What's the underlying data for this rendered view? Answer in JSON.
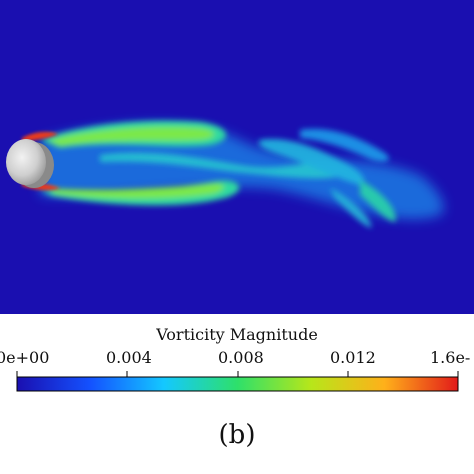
{
  "colorbar": {
    "title": "Vorticity Magnitude",
    "ticks": [
      {
        "label": "0e+00",
        "value": 0
      },
      {
        "label": "0.004",
        "value": 0.004
      },
      {
        "label": "0.008",
        "value": 0.008
      },
      {
        "label": "0.012",
        "value": 0.012
      },
      {
        "label": "1.6e-",
        "value": 0.016
      }
    ],
    "colors": [
      "#1a0fb0",
      "#1452ff",
      "#14c8ff",
      "#2ee06a",
      "#b7e61a",
      "#ffb01a",
      "#e21a1a"
    ]
  },
  "panel_label": "(b)"
}
